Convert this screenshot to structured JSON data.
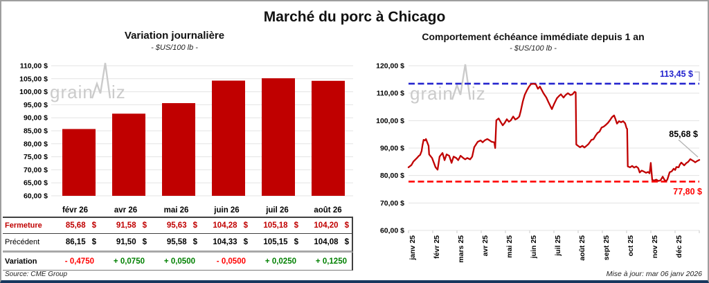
{
  "header": {
    "title": "Marché du porc à Chicago"
  },
  "footer": {
    "source": "Source: CME Group",
    "updated": "Mise à jour: mar 06 janv 2026"
  },
  "watermark": {
    "part1": "grain",
    "part2": "iz"
  },
  "colors": {
    "series_red": "#C00000",
    "bar_red": "#C00000",
    "pink_row_bg": "#F6BFBF",
    "negative_red": "#FF0000",
    "positive_green": "#008000",
    "max_line_blue": "#2323CE",
    "min_line_red": "#FF0000",
    "grid_gray": "#E3E3E3",
    "tick_gray": "#C9C9C9",
    "watermark_gray": "#CBCBCB",
    "leader_gray": "#ADADC2"
  },
  "chart_data": [
    {
      "type": "bar",
      "title": "Variation journalière",
      "subtitle": "- $US/100 lb -",
      "categories": [
        "févr 26",
        "avr 26",
        "mai 26",
        "juin 26",
        "juil 26",
        "août 26"
      ],
      "values": [
        85.68,
        91.58,
        95.63,
        104.28,
        105.18,
        104.2
      ],
      "ylim": [
        60,
        110
      ],
      "ytick_step": 5,
      "ytick_labels": [
        "110,00 $",
        "105,00 $",
        "100,00 $",
        "95,00 $",
        "90,00 $",
        "85,00 $",
        "80,00 $",
        "75,00 $",
        "70,00 $",
        "65,00 $",
        "60,00 $"
      ],
      "grid": true,
      "legend": false
    },
    {
      "type": "line",
      "title": "Comportement échéance immédiate depuis 1 an",
      "subtitle": "- $US/100 lb -",
      "xtick_labels": [
        "janv 25",
        "févr 25",
        "mars 25",
        "avr 25",
        "mai 25",
        "juin 25",
        "juil 25",
        "août 25",
        "sept 25",
        "oct 25",
        "nov 25",
        "déc 25"
      ],
      "ylim": [
        60,
        120
      ],
      "ytick_step": 10,
      "ytick_labels": [
        "120,00 $",
        "110,00 $",
        "100,00 $",
        "90,00 $",
        "80,00 $",
        "70,00 $",
        "60,00 $"
      ],
      "max_line": {
        "value": 113.45,
        "label": "113,45 $"
      },
      "min_line": {
        "value": 77.8,
        "label": "77,80 $"
      },
      "last_value": 85.68,
      "last_value_label": "85,68 $",
      "grid": true,
      "legend": false,
      "series": [
        {
          "name": "Échéance immédiate",
          "color": "#C00000",
          "points": [
            [
              0.0,
              83.0
            ],
            [
              0.01,
              83.8
            ],
            [
              0.017,
              85.1
            ],
            [
              0.029,
              86.4
            ],
            [
              0.036,
              87.2
            ],
            [
              0.04,
              87.5
            ],
            [
              0.045,
              88.9
            ],
            [
              0.048,
              91.0
            ],
            [
              0.052,
              93.0
            ],
            [
              0.057,
              92.8
            ],
            [
              0.06,
              93.3
            ],
            [
              0.069,
              90.8
            ],
            [
              0.071,
              87.7
            ],
            [
              0.081,
              86.4
            ],
            [
              0.093,
              83.0
            ],
            [
              0.1,
              82.1
            ],
            [
              0.107,
              86.9
            ],
            [
              0.117,
              88.2
            ],
            [
              0.124,
              85.6
            ],
            [
              0.131,
              87.7
            ],
            [
              0.14,
              87.2
            ],
            [
              0.148,
              84.6
            ],
            [
              0.155,
              86.9
            ],
            [
              0.164,
              86.4
            ],
            [
              0.171,
              85.6
            ],
            [
              0.179,
              87.2
            ],
            [
              0.188,
              86.4
            ],
            [
              0.195,
              85.9
            ],
            [
              0.202,
              86.4
            ],
            [
              0.212,
              85.9
            ],
            [
              0.219,
              86.9
            ],
            [
              0.226,
              90.3
            ],
            [
              0.238,
              92.3
            ],
            [
              0.248,
              92.8
            ],
            [
              0.255,
              92.1
            ],
            [
              0.262,
              92.8
            ],
            [
              0.271,
              93.3
            ],
            [
              0.279,
              92.8
            ],
            [
              0.286,
              92.3
            ],
            [
              0.295,
              92.1
            ],
            [
              0.298,
              90.0
            ],
            [
              0.302,
              100.1
            ],
            [
              0.31,
              100.8
            ],
            [
              0.317,
              99.5
            ],
            [
              0.324,
              98.3
            ],
            [
              0.331,
              99.2
            ],
            [
              0.338,
              100.5
            ],
            [
              0.345,
              99.6
            ],
            [
              0.352,
              100.1
            ],
            [
              0.36,
              101.5
            ],
            [
              0.367,
              100.4
            ],
            [
              0.374,
              100.8
            ],
            [
              0.381,
              101.5
            ],
            [
              0.386,
              103.5
            ],
            [
              0.393,
              107.0
            ],
            [
              0.4,
              109.5
            ],
            [
              0.407,
              111.0
            ],
            [
              0.414,
              112.3
            ],
            [
              0.421,
              113.3
            ],
            [
              0.431,
              113.45
            ],
            [
              0.438,
              113.2
            ],
            [
              0.445,
              111.6
            ],
            [
              0.452,
              112.4
            ],
            [
              0.464,
              110.0
            ],
            [
              0.474,
              108.4
            ],
            [
              0.481,
              106.8
            ],
            [
              0.493,
              104.2
            ],
            [
              0.5,
              105.9
            ],
            [
              0.51,
              108.1
            ],
            [
              0.517,
              108.9
            ],
            [
              0.524,
              109.6
            ],
            [
              0.533,
              108.4
            ],
            [
              0.54,
              109.3
            ],
            [
              0.548,
              110.0
            ],
            [
              0.557,
              109.3
            ],
            [
              0.564,
              109.6
            ],
            [
              0.571,
              110.5
            ],
            [
              0.575,
              110.3
            ],
            [
              0.577,
              91.3
            ],
            [
              0.583,
              90.8
            ],
            [
              0.59,
              90.3
            ],
            [
              0.598,
              90.8
            ],
            [
              0.605,
              90.2
            ],
            [
              0.612,
              90.8
            ],
            [
              0.619,
              91.5
            ],
            [
              0.629,
              93.0
            ],
            [
              0.636,
              93.2
            ],
            [
              0.643,
              94.5
            ],
            [
              0.65,
              95.5
            ],
            [
              0.657,
              96.0
            ],
            [
              0.664,
              97.5
            ],
            [
              0.671,
              97.8
            ],
            [
              0.679,
              98.5
            ],
            [
              0.686,
              99.2
            ],
            [
              0.693,
              100.2
            ],
            [
              0.7,
              101.3
            ],
            [
              0.707,
              101.9
            ],
            [
              0.712,
              100.5
            ],
            [
              0.717,
              98.9
            ],
            [
              0.724,
              99.8
            ],
            [
              0.731,
              99.4
            ],
            [
              0.738,
              99.8
            ],
            [
              0.745,
              99.0
            ],
            [
              0.75,
              97.2
            ],
            [
              0.752,
              97.0
            ],
            [
              0.754,
              83.3
            ],
            [
              0.762,
              83.0
            ],
            [
              0.769,
              83.5
            ],
            [
              0.776,
              82.9
            ],
            [
              0.783,
              83.3
            ],
            [
              0.79,
              82.7
            ],
            [
              0.795,
              81.1
            ],
            [
              0.802,
              81.8
            ],
            [
              0.81,
              81.4
            ],
            [
              0.817,
              81.0
            ],
            [
              0.824,
              81.3
            ],
            [
              0.829,
              80.8
            ],
            [
              0.833,
              84.6
            ],
            [
              0.838,
              78.4
            ],
            [
              0.845,
              78.2
            ],
            [
              0.852,
              78.5
            ],
            [
              0.86,
              78.0
            ],
            [
              0.867,
              78.3
            ],
            [
              0.874,
              79.6
            ],
            [
              0.881,
              78.3
            ],
            [
              0.886,
              78.0
            ],
            [
              0.89,
              78.5
            ],
            [
              0.898,
              81.2
            ],
            [
              0.905,
              81.5
            ],
            [
              0.912,
              82.5
            ],
            [
              0.917,
              82.0
            ],
            [
              0.921,
              83.1
            ],
            [
              0.929,
              83.0
            ],
            [
              0.933,
              84.0
            ],
            [
              0.938,
              84.7
            ],
            [
              0.943,
              84.2
            ],
            [
              0.948,
              83.7
            ],
            [
              0.955,
              84.5
            ],
            [
              0.962,
              85.0
            ],
            [
              0.969,
              86.0
            ],
            [
              0.976,
              85.5
            ],
            [
              0.981,
              85.2
            ],
            [
              0.986,
              84.8
            ],
            [
              0.993,
              85.3
            ],
            [
              1.0,
              85.68
            ]
          ]
        }
      ]
    }
  ],
  "table": {
    "columns": [
      "févr 26",
      "avr 26",
      "mai 26",
      "juin 26",
      "juil 26",
      "août 26"
    ],
    "rows": [
      {
        "key": "fermeture",
        "label": "Fermeture",
        "currency": "$",
        "values": [
          "85,68",
          "91,58",
          "95,63",
          "104,28",
          "105,18",
          "104,20"
        ]
      },
      {
        "key": "precedent",
        "label": "Précédent",
        "currency": "$",
        "values": [
          "86,15",
          "91,50",
          "95,58",
          "104,33",
          "105,15",
          "104,08"
        ]
      },
      {
        "key": "variation",
        "label": "Variation",
        "values": [
          "- 0,4750",
          "+ 0,0750",
          "+ 0,0500",
          "- 0,0500",
          "+ 0,0250",
          "+ 0,1250"
        ],
        "signs": [
          "neg",
          "pos",
          "pos",
          "neg",
          "pos",
          "pos"
        ]
      }
    ]
  }
}
